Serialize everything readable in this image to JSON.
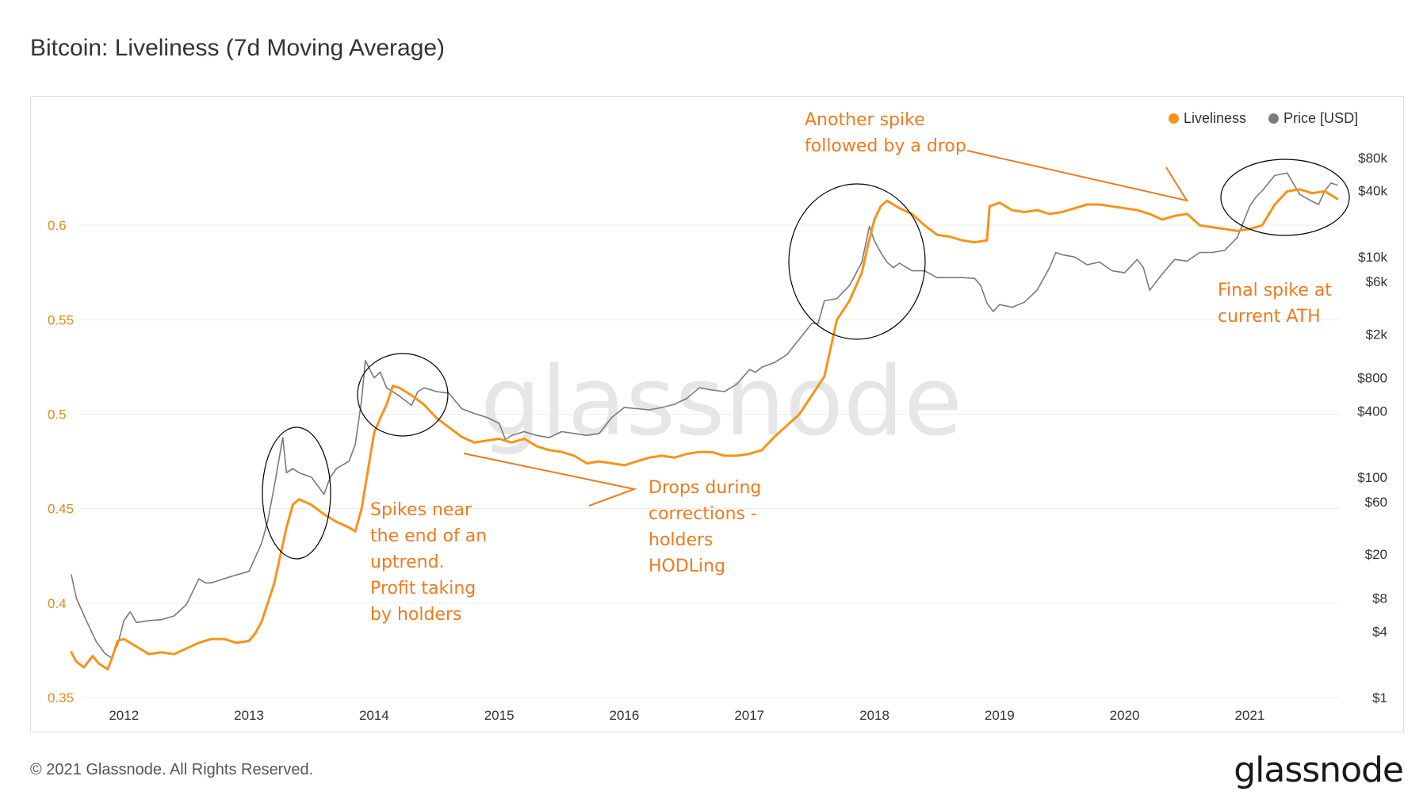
{
  "title": "Bitcoin: Liveliness (7d Moving Average)",
  "footer": {
    "copyright": "© 2021 Glassnode. All Rights Reserved.",
    "logo_text": "glassnode"
  },
  "watermark": "glassnode",
  "colors": {
    "liveliness": "#f7931a",
    "price": "#7a7a7a",
    "annotation": "#f07a1e"
  },
  "legend": [
    {
      "label": "Liveliness",
      "color": "#f7931a"
    },
    {
      "label": "Price [USD]",
      "color": "#7a7a7a"
    }
  ],
  "annotations": {
    "spikes": [
      "Spikes near",
      "the end of an",
      "uptrend.",
      "Profit taking",
      "by holders"
    ],
    "drops": [
      "Drops during",
      "corrections -",
      "holders",
      "HODLing"
    ],
    "another": [
      "Another spike",
      "followed by a drop"
    ],
    "final": [
      "Final spike at",
      "current ATH"
    ]
  },
  "chart_data": {
    "type": "line",
    "x_range": [
      2011.58,
      2021.72
    ],
    "x_ticks": [
      "2012",
      "2013",
      "2014",
      "2015",
      "2016",
      "2017",
      "2018",
      "2019",
      "2020",
      "2021"
    ],
    "y_left": {
      "label": "Liveliness",
      "range": [
        0.35,
        0.65
      ],
      "ticks": [
        "0.35",
        "0.4",
        "0.45",
        "0.5",
        "0.55",
        "0.6"
      ]
    },
    "y_right": {
      "label": "Price [USD]",
      "scale": "log",
      "range": [
        1,
        140000
      ],
      "ticks": [
        "$1",
        "$4",
        "$8",
        "$20",
        "$60",
        "$100",
        "$400",
        "$800",
        "$2k",
        "$6k",
        "$10k",
        "$40k",
        "$80k"
      ]
    },
    "series": [
      {
        "name": "Liveliness",
        "axis": "left",
        "x": [
          2011.58,
          2011.62,
          2011.68,
          2011.75,
          2011.8,
          2011.87,
          2011.9,
          2011.95,
          2012.0,
          2012.1,
          2012.2,
          2012.3,
          2012.4,
          2012.5,
          2012.6,
          2012.7,
          2012.8,
          2012.9,
          2013.0,
          2013.05,
          2013.1,
          2013.2,
          2013.25,
          2013.3,
          2013.35,
          2013.4,
          2013.5,
          2013.6,
          2013.7,
          2013.8,
          2013.85,
          2013.9,
          2013.95,
          2014.0,
          2014.05,
          2014.1,
          2014.15,
          2014.2,
          2014.3,
          2014.4,
          2014.5,
          2014.6,
          2014.7,
          2014.8,
          2014.9,
          2015.0,
          2015.1,
          2015.2,
          2015.3,
          2015.4,
          2015.5,
          2015.6,
          2015.7,
          2015.8,
          2015.9,
          2016.0,
          2016.1,
          2016.2,
          2016.3,
          2016.4,
          2016.5,
          2016.6,
          2016.7,
          2016.8,
          2016.9,
          2017.0,
          2017.1,
          2017.2,
          2017.3,
          2017.4,
          2017.5,
          2017.6,
          2017.65,
          2017.7,
          2017.8,
          2017.9,
          2017.95,
          2018.0,
          2018.05,
          2018.1,
          2018.2,
          2018.3,
          2018.4,
          2018.5,
          2018.6,
          2018.7,
          2018.8,
          2018.9,
          2018.92,
          2018.96,
          2019.0,
          2019.1,
          2019.2,
          2019.3,
          2019.4,
          2019.5,
          2019.6,
          2019.7,
          2019.8,
          2019.9,
          2020.0,
          2020.1,
          2020.2,
          2020.3,
          2020.4,
          2020.5,
          2020.6,
          2020.7,
          2020.8,
          2020.9,
          2021.0,
          2021.1,
          2021.2,
          2021.3,
          2021.4,
          2021.5,
          2021.6,
          2021.7
        ],
        "y": [
          0.374,
          0.369,
          0.366,
          0.372,
          0.368,
          0.365,
          0.37,
          0.38,
          0.381,
          0.377,
          0.373,
          0.374,
          0.373,
          0.376,
          0.379,
          0.381,
          0.381,
          0.379,
          0.38,
          0.384,
          0.39,
          0.41,
          0.425,
          0.44,
          0.452,
          0.455,
          0.452,
          0.447,
          0.443,
          0.44,
          0.438,
          0.45,
          0.47,
          0.49,
          0.498,
          0.505,
          0.515,
          0.514,
          0.51,
          0.505,
          0.498,
          0.493,
          0.488,
          0.485,
          0.486,
          0.487,
          0.485,
          0.487,
          0.483,
          0.481,
          0.48,
          0.478,
          0.474,
          0.475,
          0.474,
          0.473,
          0.475,
          0.477,
          0.478,
          0.477,
          0.479,
          0.48,
          0.48,
          0.478,
          0.478,
          0.479,
          0.481,
          0.488,
          0.494,
          0.5,
          0.51,
          0.52,
          0.535,
          0.55,
          0.56,
          0.575,
          0.59,
          0.603,
          0.61,
          0.613,
          0.609,
          0.606,
          0.6,
          0.595,
          0.594,
          0.592,
          0.591,
          0.592,
          0.61,
          0.611,
          0.612,
          0.608,
          0.607,
          0.608,
          0.606,
          0.607,
          0.609,
          0.611,
          0.611,
          0.61,
          0.609,
          0.608,
          0.606,
          0.603,
          0.605,
          0.606,
          0.6,
          0.599,
          0.598,
          0.597,
          0.598,
          0.6,
          0.611,
          0.618,
          0.619,
          0.617,
          0.618,
          0.614
        ]
      },
      {
        "name": "Price [USD]",
        "axis": "right",
        "x": [
          2011.58,
          2011.62,
          2011.7,
          2011.78,
          2011.85,
          2011.9,
          2011.95,
          2012.0,
          2012.05,
          2012.1,
          2012.2,
          2012.3,
          2012.4,
          2012.5,
          2012.6,
          2012.65,
          2012.7,
          2012.8,
          2012.9,
          2013.0,
          2013.1,
          2013.15,
          2013.2,
          2013.27,
          2013.3,
          2013.35,
          2013.4,
          2013.5,
          2013.6,
          2013.65,
          2013.7,
          2013.8,
          2013.85,
          2013.9,
          2013.93,
          2014.0,
          2014.05,
          2014.1,
          2014.2,
          2014.3,
          2014.35,
          2014.4,
          2014.5,
          2014.6,
          2014.7,
          2014.8,
          2014.9,
          2015.0,
          2015.05,
          2015.1,
          2015.2,
          2015.3,
          2015.4,
          2015.5,
          2015.6,
          2015.7,
          2015.8,
          2015.9,
          2016.0,
          2016.1,
          2016.2,
          2016.3,
          2016.4,
          2016.5,
          2016.6,
          2016.7,
          2016.8,
          2016.9,
          2017.0,
          2017.05,
          2017.1,
          2017.2,
          2017.3,
          2017.4,
          2017.5,
          2017.55,
          2017.6,
          2017.7,
          2017.8,
          2017.85,
          2017.9,
          2017.96,
          2018.0,
          2018.05,
          2018.1,
          2018.15,
          2018.2,
          2018.3,
          2018.4,
          2018.5,
          2018.6,
          2018.7,
          2018.8,
          2018.85,
          2018.9,
          2018.95,
          2019.0,
          2019.1,
          2019.2,
          2019.3,
          2019.4,
          2019.45,
          2019.5,
          2019.6,
          2019.7,
          2019.8,
          2019.9,
          2020.0,
          2020.1,
          2020.15,
          2020.2,
          2020.3,
          2020.4,
          2020.5,
          2020.6,
          2020.7,
          2020.8,
          2020.9,
          2021.0,
          2021.05,
          2021.1,
          2021.2,
          2021.3,
          2021.4,
          2021.5,
          2021.55,
          2021.6,
          2021.65,
          2021.7
        ],
        "y": [
          13,
          8,
          5,
          3.2,
          2.5,
          2.3,
          3,
          5,
          6,
          4.8,
          5,
          5.1,
          5.5,
          7,
          12,
          11,
          11,
          12,
          13,
          14,
          25,
          40,
          80,
          230,
          110,
          120,
          110,
          100,
          70,
          100,
          120,
          140,
          200,
          500,
          1150,
          800,
          900,
          650,
          550,
          450,
          600,
          650,
          600,
          580,
          420,
          380,
          350,
          310,
          220,
          240,
          260,
          240,
          230,
          260,
          250,
          240,
          250,
          350,
          430,
          420,
          410,
          430,
          460,
          520,
          650,
          620,
          600,
          700,
          950,
          900,
          1000,
          1100,
          1300,
          1800,
          2500,
          2500,
          4000,
          4200,
          5500,
          7000,
          9000,
          19000,
          14000,
          11000,
          9000,
          8000,
          8800,
          7500,
          7500,
          6500,
          6500,
          6500,
          6400,
          5500,
          3800,
          3200,
          3700,
          3500,
          3900,
          5000,
          8000,
          11000,
          10500,
          10000,
          8500,
          9000,
          7500,
          7200,
          9500,
          8000,
          5000,
          7000,
          9500,
          9200,
          11000,
          11000,
          11500,
          15000,
          29000,
          35000,
          40000,
          55000,
          58000,
          37000,
          32000,
          30000,
          40000,
          47000,
          45000
        ]
      }
    ]
  }
}
